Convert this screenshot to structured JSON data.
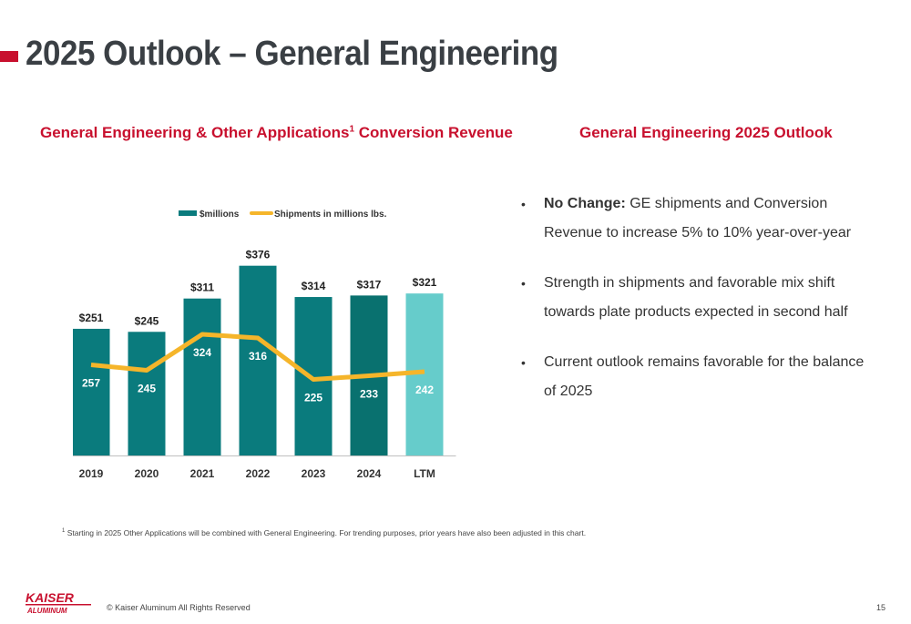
{
  "page": {
    "title": "2025 Outlook – General Engineering",
    "page_number": "15",
    "copyright": "© Kaiser Aluminum All Rights Reserved",
    "logo_top": "KAISER",
    "logo_bottom": "ALUMINUM"
  },
  "left_section": {
    "title": "General Engineering & Other Applications",
    "title_sup": "1",
    "title_suffix": " Conversion Revenue"
  },
  "right_section": {
    "title": "General Engineering 2025 Outlook",
    "bullets": [
      {
        "bold": "No Change:",
        "text": " GE shipments and Conversion Revenue to increase 5% to 10% year-over-year"
      },
      {
        "bold": "",
        "text": "Strength in shipments and favorable mix shift towards plate products expected in second half"
      },
      {
        "bold": "",
        "text": "Current outlook remains favorable for the balance of 2025"
      }
    ]
  },
  "footnote": {
    "sup": "1",
    "text": " Starting in 2025 Other Applications will be combined with General Engineering. For trending purposes, prior years have also been adjusted in this chart."
  },
  "colors": {
    "accent": "#c8102e",
    "bar": "#0a7b7d",
    "bar_2024": "#09716f",
    "bar_ltm": "#66cccb",
    "line": "#f5b52a"
  },
  "chart_data": {
    "type": "bar",
    "categories": [
      "2019",
      "2020",
      "2021",
      "2022",
      "2023",
      "2024",
      "LTM"
    ],
    "series": [
      {
        "name": "$millions",
        "type": "bar",
        "values": [
          251,
          245,
          311,
          376,
          314,
          317,
          321
        ],
        "labels": [
          "$251",
          "$245",
          "$311",
          "$376",
          "$314",
          "$317",
          "$321"
        ]
      },
      {
        "name": "Shipments in millions lbs.",
        "type": "line",
        "values": [
          257,
          245,
          324,
          316,
          225,
          233,
          242
        ],
        "labels": [
          "257",
          "245",
          "324",
          "316",
          "225",
          "233",
          "242"
        ]
      }
    ],
    "legend": "top-center",
    "grid": false
  }
}
